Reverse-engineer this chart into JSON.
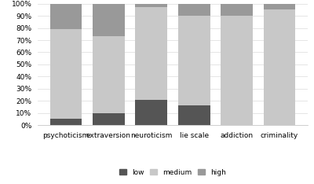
{
  "categories": [
    "psychoticism",
    "extraversion",
    "neuroticism",
    "lie scale",
    "addiction",
    "criminality"
  ],
  "low": [
    5,
    10,
    21,
    16,
    0,
    0
  ],
  "medium": [
    74,
    63,
    76,
    74,
    90,
    95
  ],
  "high": [
    21,
    27,
    3,
    10,
    10,
    5
  ],
  "color_low": "#555555",
  "color_medium": "#c8c8c8",
  "color_high": "#999999",
  "ylim": [
    0,
    100
  ],
  "yticks": [
    0,
    10,
    20,
    30,
    40,
    50,
    60,
    70,
    80,
    90,
    100
  ],
  "ytick_labels": [
    "0%",
    "10%",
    "20%",
    "30%",
    "40%",
    "50%",
    "60%",
    "70%",
    "80%",
    "90%",
    "100%"
  ],
  "legend_labels": [
    "low",
    "medium",
    "high"
  ],
  "bar_width": 0.75
}
